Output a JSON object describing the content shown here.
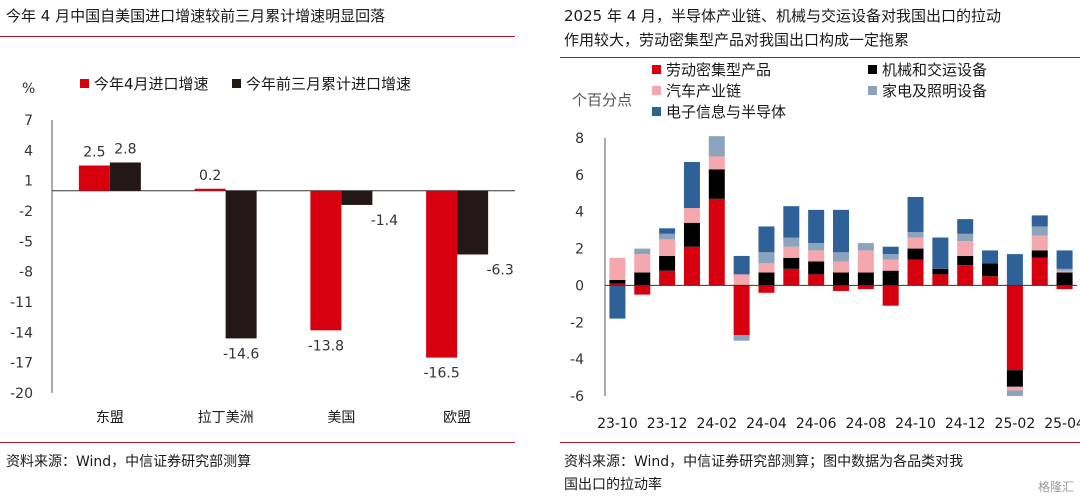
{
  "left": {
    "title": "今年 4 月中国自美国进口增速较前三月累计增速明显回落",
    "source": "资料来源：Wind，中信证券研究部测算",
    "chart_data": {
      "type": "bar",
      "unit": "%",
      "categories": [
        "东盟",
        "拉丁美洲",
        "美国",
        "欧盟"
      ],
      "series": [
        {
          "name": "今年4月进口增速",
          "color": "#d7000f",
          "values": [
            2.5,
            0.2,
            -13.8,
            -16.5
          ]
        },
        {
          "name": "今年前三月累计进口增速",
          "color": "#231815",
          "values": [
            2.8,
            -14.6,
            -1.4,
            -6.3
          ]
        }
      ],
      "data_labels": [
        [
          "2.5",
          "0.2",
          "-13.8",
          "-16.5"
        ],
        [
          "2.8",
          "-14.6",
          "-1.4",
          "-6.3"
        ]
      ],
      "ylim": [
        -20,
        7
      ],
      "yticks": [
        7,
        4,
        1,
        -2,
        -5,
        -8,
        -11,
        -14,
        -17,
        -20
      ],
      "legend": "top"
    }
  },
  "right": {
    "title_line1": "2025 年 4 月，半导体产业链、机械与交运设备对我国出口的拉动",
    "title_line2": "作用较大，劳动密集型产品对我国出口构成一定拖累",
    "source_line1": "资料来源：Wind，中信证券研究部测算；图中数据为各品类对我",
    "source_line2": "国出口的拉动率",
    "chart_data": {
      "type": "bar",
      "stacked": true,
      "ylabel": "个百分点",
      "ylim": [
        -6,
        8
      ],
      "yticks": [
        8,
        6,
        4,
        2,
        0,
        -2,
        -4,
        -6
      ],
      "x": [
        "23-10",
        "23-11",
        "23-12",
        "24-01",
        "24-02",
        "24-03",
        "24-04",
        "24-05",
        "24-06",
        "24-07",
        "24-08",
        "24-09",
        "24-10",
        "24-11",
        "24-12",
        "25-01",
        "25-02",
        "25-03",
        "25-04"
      ],
      "x_tick_labels": [
        "23-10",
        "23-12",
        "24-02",
        "24-04",
        "24-06",
        "24-08",
        "24-10",
        "24-12",
        "25-02",
        "25-04"
      ],
      "series": [
        {
          "name": "劳动密集型产品",
          "color": "#d7000f",
          "values": [
            0.1,
            -0.5,
            0.8,
            2.1,
            4.7,
            -2.7,
            -0.4,
            0.9,
            0.6,
            -0.3,
            -0.2,
            -1.1,
            1.4,
            0.6,
            1.1,
            0.5,
            -4.6,
            1.5,
            -0.2
          ]
        },
        {
          "name": "机械和交运设备",
          "color": "#000000",
          "values": [
            0.2,
            0.7,
            0.8,
            1.3,
            1.6,
            0.0,
            0.7,
            0.6,
            0.7,
            0.7,
            0.7,
            0.8,
            0.6,
            0.3,
            0.5,
            0.7,
            -0.9,
            0.4,
            0.7
          ]
        },
        {
          "name": "汽车产业链",
          "color": "#f4a7ad",
          "values": [
            1.2,
            1.0,
            0.9,
            0.8,
            0.7,
            0.6,
            0.5,
            0.6,
            0.6,
            0.6,
            1.2,
            0.6,
            0.6,
            0.0,
            0.8,
            0.0,
            -0.2,
            0.8,
            0.1
          ]
        },
        {
          "name": "家电及照明设备",
          "color": "#8ba3bc",
          "values": [
            0.0,
            0.3,
            0.3,
            0.0,
            1.1,
            -0.3,
            0.6,
            0.5,
            0.4,
            0.5,
            0.4,
            0.3,
            0.3,
            0.0,
            0.4,
            0.0,
            -0.3,
            0.5,
            0.1
          ]
        },
        {
          "name": "电子信息与半导体",
          "color": "#2e6197",
          "values": [
            -1.8,
            0.0,
            0.3,
            2.5,
            0.0,
            1.0,
            1.4,
            1.7,
            1.8,
            2.3,
            0.0,
            0.4,
            1.9,
            1.7,
            0.8,
            0.7,
            1.7,
            0.6,
            1.0
          ]
        }
      ],
      "legend": "top"
    }
  },
  "watermark": "格隆汇"
}
